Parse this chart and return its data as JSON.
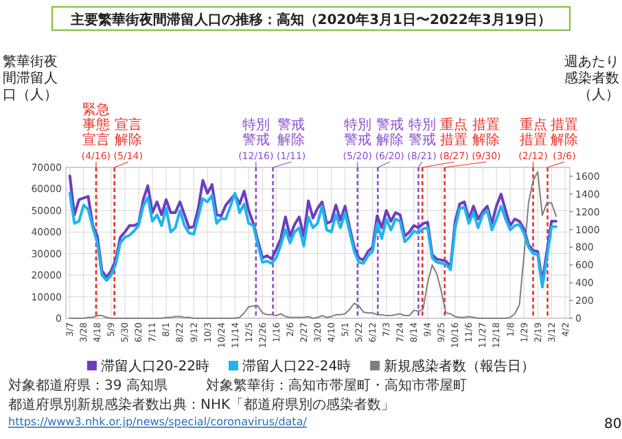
{
  "chart_data": {
    "type": "line",
    "title": "主要繁華街夜間滞留人口の推移：高知（2020年3月1日〜2022年3月19日）",
    "ylabel": "繁華街夜間滞留人口（人）",
    "y2label": "週あたり感染者数（人）",
    "x": [
      "2020-03-07",
      "2020-03-14",
      "2020-03-21",
      "2020-03-28",
      "2020-04-04",
      "2020-04-11",
      "2020-04-18",
      "2020-04-25",
      "2020-05-02",
      "2020-05-09",
      "2020-05-16",
      "2020-05-23",
      "2020-05-30",
      "2020-06-06",
      "2020-06-13",
      "2020-06-20",
      "2020-06-27",
      "2020-07-04",
      "2020-07-11",
      "2020-07-18",
      "2020-07-25",
      "2020-08-01",
      "2020-08-08",
      "2020-08-15",
      "2020-08-22",
      "2020-08-29",
      "2020-09-05",
      "2020-09-12",
      "2020-09-19",
      "2020-09-26",
      "2020-10-03",
      "2020-10-10",
      "2020-10-17",
      "2020-10-24",
      "2020-10-31",
      "2020-11-07",
      "2020-11-14",
      "2020-11-21",
      "2020-11-28",
      "2020-12-05",
      "2020-12-12",
      "2020-12-19",
      "2020-12-26",
      "2021-01-02",
      "2021-01-09",
      "2021-01-16",
      "2021-01-23",
      "2021-01-30",
      "2021-02-06",
      "2021-02-13",
      "2021-02-20",
      "2021-02-27",
      "2021-03-06",
      "2021-03-13",
      "2021-03-20",
      "2021-03-27",
      "2021-04-03",
      "2021-04-10",
      "2021-04-17",
      "2021-04-24",
      "2021-05-01",
      "2021-05-08",
      "2021-05-15",
      "2021-05-22",
      "2021-05-29",
      "2021-06-05",
      "2021-06-12",
      "2021-06-19",
      "2021-06-26",
      "2021-07-03",
      "2021-07-10",
      "2021-07-17",
      "2021-07-24",
      "2021-07-31",
      "2021-08-07",
      "2021-08-14",
      "2021-08-21",
      "2021-08-28",
      "2021-09-04",
      "2021-09-11",
      "2021-09-18",
      "2021-09-25",
      "2021-10-02",
      "2021-10-09",
      "2021-10-16",
      "2021-10-23",
      "2021-10-30",
      "2021-11-06",
      "2021-11-13",
      "2021-11-20",
      "2021-11-27",
      "2021-12-04",
      "2021-12-11",
      "2021-12-18",
      "2021-12-25",
      "2022-01-01",
      "2022-01-08",
      "2022-01-15",
      "2022-01-22",
      "2022-01-29",
      "2022-02-05",
      "2022-02-12",
      "2022-02-19",
      "2022-02-26",
      "2022-03-05",
      "2022-03-12",
      "2022-03-19"
    ],
    "series": [
      {
        "name": "滞留人口20-22時",
        "color": "#6a3fbf",
        "values": [
          66000,
          48000,
          55000,
          55800,
          56500,
          43000,
          38000,
          22000,
          19000,
          22000,
          27000,
          37500,
          40000,
          43000,
          43000,
          44000,
          55000,
          61500,
          49000,
          54000,
          48000,
          55000,
          49000,
          49000,
          54000,
          48000,
          42000,
          42500,
          51000,
          64000,
          58000,
          62000,
          48000,
          47500,
          52500,
          55000,
          57500,
          53000,
          59000,
          50000,
          44000,
          36000,
          28000,
          29000,
          27500,
          32000,
          37000,
          47000,
          38000,
          43500,
          47000,
          38000,
          54500,
          46500,
          51000,
          54000,
          44000,
          45000,
          52500,
          45500,
          52000,
          42000,
          33000,
          28000,
          27000,
          31000,
          33000,
          47600,
          42000,
          50000,
          45000,
          49000,
          48000,
          38000,
          40000,
          43000,
          42000,
          44000,
          44500,
          29500,
          27500,
          27000,
          26500,
          24000,
          45000,
          53000,
          54000,
          46000,
          52000,
          46000,
          49500,
          52000,
          44000,
          52000,
          57600,
          50000,
          43000,
          46000,
          45000,
          41500,
          34000,
          31500,
          31000,
          17000,
          31000,
          45000,
          45000
        ]
      },
      {
        "name": "滞留人口22-24時",
        "color": "#1fb4ef",
        "values": [
          58000,
          44000,
          45000,
          52500,
          50500,
          42000,
          35000,
          20000,
          17500,
          20000,
          25000,
          35000,
          37500,
          38500,
          40500,
          43000,
          52000,
          56000,
          45000,
          48000,
          43000,
          51000,
          40000,
          42000,
          50000,
          43000,
          39500,
          39000,
          47000,
          55500,
          54000,
          57000,
          44000,
          46500,
          46000,
          52000,
          58000,
          49000,
          53000,
          44000,
          43000,
          34000,
          26000,
          26500,
          25500,
          28000,
          34000,
          41000,
          35000,
          40000,
          42000,
          33500,
          47000,
          42000,
          44000,
          52000,
          41000,
          40000,
          48000,
          42000,
          49000,
          40000,
          31000,
          26000,
          25500,
          29000,
          31000,
          44000,
          37000,
          46000,
          41000,
          46000,
          45000,
          35500,
          37500,
          40500,
          39500,
          41500,
          42000,
          28000,
          26000,
          25500,
          25000,
          22500,
          42000,
          51000,
          51500,
          44000,
          49000,
          42000,
          48000,
          50000,
          41000,
          46000,
          52000,
          46000,
          41000,
          43000,
          43500,
          39500,
          33000,
          30000,
          29500,
          14500,
          28000,
          42500,
          42500
        ]
      },
      {
        "name": "新規感染者数（報告日）",
        "color": "#7f7f7f",
        "axis": "y2",
        "values": [
          0,
          0,
          0,
          0,
          10,
          10,
          30,
          30,
          10,
          0,
          0,
          0,
          0,
          0,
          0,
          0,
          0,
          0,
          0,
          0,
          0,
          10,
          10,
          20,
          20,
          10,
          10,
          0,
          0,
          0,
          0,
          0,
          0,
          0,
          0,
          0,
          0,
          10,
          60,
          130,
          140,
          140,
          60,
          40,
          40,
          30,
          50,
          20,
          10,
          10,
          10,
          10,
          20,
          0,
          10,
          30,
          10,
          20,
          40,
          40,
          50,
          100,
          170,
          140,
          70,
          60,
          60,
          40,
          40,
          30,
          30,
          40,
          50,
          30,
          30,
          90,
          80,
          100,
          400,
          600,
          500,
          300,
          60,
          50,
          20,
          10,
          10,
          20,
          10,
          0,
          0,
          0,
          0,
          0,
          0,
          0,
          10,
          50,
          150,
          700,
          1300,
          1550,
          1650,
          1160,
          1300,
          1300,
          1150
        ]
      }
    ],
    "xlim": [
      "2020-03-01",
      "2022-04-09"
    ],
    "xticks": [
      {
        "value": "2020-03-07",
        "label": "3/7"
      },
      {
        "value": "2020-03-28",
        "label": "3/28"
      },
      {
        "value": "2020-04-18",
        "label": "4/18"
      },
      {
        "value": "2020-05-09",
        "label": "5/9"
      },
      {
        "value": "2020-05-30",
        "label": "5/30"
      },
      {
        "value": "2020-06-20",
        "label": "6/20"
      },
      {
        "value": "2020-07-11",
        "label": "7/11"
      },
      {
        "value": "2020-08-01",
        "label": "8/1"
      },
      {
        "value": "2020-08-22",
        "label": "8/22"
      },
      {
        "value": "2020-09-12",
        "label": "9/12"
      },
      {
        "value": "2020-10-03",
        "label": "10/3"
      },
      {
        "value": "2020-10-24",
        "label": "10/24"
      },
      {
        "value": "2020-11-14",
        "label": "11/14"
      },
      {
        "value": "2020-12-05",
        "label": "12/5"
      },
      {
        "value": "2020-12-26",
        "label": "12/26"
      },
      {
        "value": "2021-01-16",
        "label": "1/16"
      },
      {
        "value": "2021-02-06",
        "label": "2/6"
      },
      {
        "value": "2021-02-27",
        "label": "2/27"
      },
      {
        "value": "2021-03-20",
        "label": "3/20"
      },
      {
        "value": "2021-04-10",
        "label": "4/10"
      },
      {
        "value": "2021-05-01",
        "label": "5/1"
      },
      {
        "value": "2021-05-22",
        "label": "5/22"
      },
      {
        "value": "2021-06-12",
        "label": "6/12"
      },
      {
        "value": "2021-07-03",
        "label": "7/3"
      },
      {
        "value": "2021-07-24",
        "label": "7/24"
      },
      {
        "value": "2021-08-14",
        "label": "8/14"
      },
      {
        "value": "2021-09-04",
        "label": "9/4"
      },
      {
        "value": "2021-09-25",
        "label": "9/25"
      },
      {
        "value": "2021-10-16",
        "label": "10/16"
      },
      {
        "value": "2021-11-06",
        "label": "11/6"
      },
      {
        "value": "2021-11-27",
        "label": "11/27"
      },
      {
        "value": "2021-12-18",
        "label": "12/18"
      },
      {
        "value": "2022-01-08",
        "label": "1/8"
      },
      {
        "value": "2022-01-29",
        "label": "1/29"
      },
      {
        "value": "2022-02-19",
        "label": "2/19"
      },
      {
        "value": "2022-03-12",
        "label": "3/12"
      },
      {
        "value": "2022-04-02",
        "label": "4/2"
      }
    ],
    "ylim": [
      0,
      70000
    ],
    "yticks": [
      0,
      10000,
      20000,
      30000,
      40000,
      50000,
      60000,
      70000
    ],
    "y2lim": [
      0,
      1700
    ],
    "y2ticks": [
      0,
      200,
      400,
      600,
      800,
      1000,
      1200,
      1400,
      1600
    ],
    "grid": true,
    "legend": "bottom",
    "ref_lines": [
      {
        "axis": "x",
        "value": "2020-04-16",
        "label": "緊急事態宣言(4/16)",
        "color": "#e8322b",
        "line_style": "dashed"
      },
      {
        "axis": "x",
        "value": "2020-05-14",
        "label": "宣言解除(5/14)",
        "color": "#e8322b",
        "line_style": "dashed"
      },
      {
        "axis": "x",
        "value": "2020-12-16",
        "label": "特別警戒(12/16)",
        "color": "#8a4fd0",
        "line_style": "dashed"
      },
      {
        "axis": "x",
        "value": "2021-01-11",
        "label": "警戒解除(1/11)",
        "color": "#8a4fd0",
        "line_style": "dashed"
      },
      {
        "axis": "x",
        "value": "2021-05-20",
        "label": "特別警戒(5/20)",
        "color": "#8a4fd0",
        "line_style": "dashed"
      },
      {
        "axis": "x",
        "value": "2021-06-20",
        "label": "警戒解除(6/20)",
        "color": "#8a4fd0",
        "line_style": "dashed"
      },
      {
        "axis": "x",
        "value": "2021-08-21",
        "label": "特別警戒(8/21)",
        "color": "#8a4fd0",
        "line_style": "dashed"
      },
      {
        "axis": "x",
        "value": "2021-08-27",
        "label": "重点措置(8/27)",
        "color": "#e8322b",
        "line_style": "dashed"
      },
      {
        "axis": "x",
        "value": "2021-09-30",
        "label": "措置解除(9/30)",
        "color": "#e8322b",
        "line_style": "dashed"
      },
      {
        "axis": "x",
        "value": "2022-02-12",
        "label": "重点措置(2/12)",
        "color": "#e8322b",
        "line_style": "dashed"
      },
      {
        "axis": "x",
        "value": "2022-03-06",
        "label": "措置解除(3/6)",
        "color": "#e8322b",
        "line_style": "dashed"
      }
    ],
    "annotations": [
      "対象都道府県：39 高知県",
      "対象繁華街：高知市帯屋町・高知市帯屋町",
      "都道府県別新規感染者数出典：NHK「都道府県別の感染者数」",
      "https://www3.nhk.or.jp/news/special/coronavirus/data/",
      "80"
    ]
  }
}
